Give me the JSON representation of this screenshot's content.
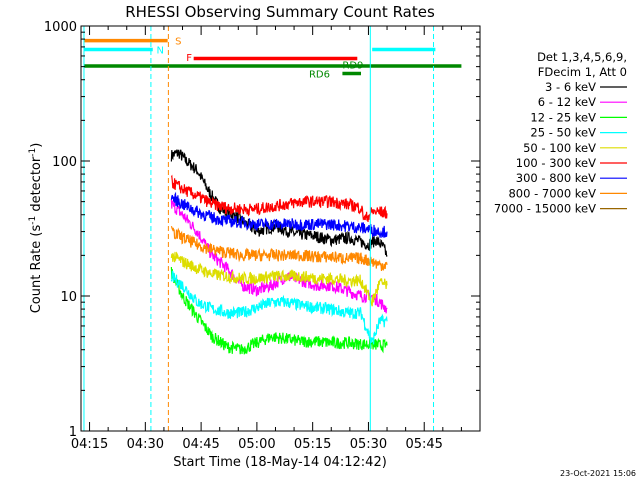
{
  "chart_data": {
    "type": "line",
    "title": "RHESSI Observing Summary Count Rates",
    "xlabel": "Start Time (18-May-14 04:12:42)",
    "ylabel": "Count Rate (s",
    "ylabel_sup": "-1",
    "ylabel_mid": " detector",
    "ylabel_end": ")",
    "x_ticks": [
      "04:15",
      "04:30",
      "04:45",
      "05:00",
      "05:15",
      "05:30",
      "05:45"
    ],
    "x_tick_minutes": [
      255,
      270,
      285,
      300,
      315,
      330,
      345
    ],
    "xlim": [
      252.7,
      360
    ],
    "ylim": [
      1,
      1000
    ],
    "y_scale": "log",
    "y_ticks": [
      "1",
      "10",
      "100",
      "1000"
    ],
    "y_tick_values": [
      1,
      10,
      100,
      1000
    ],
    "legend": {
      "header_line1": "Det 1,3,4,5,6,9,",
      "header_line2": "FDecim 1, Att 0",
      "position": "right"
    },
    "series": [
      {
        "name": "3 - 6 keV",
        "color": "#000000",
        "x": [
          277,
          279,
          281,
          284,
          287,
          290,
          295,
          300,
          305,
          310,
          315,
          320,
          325,
          330,
          332,
          334,
          335
        ],
        "y": [
          110,
          115,
          100,
          85,
          60,
          45,
          38,
          30,
          33,
          29,
          28,
          26,
          27,
          24,
          26,
          23,
          20
        ]
      },
      {
        "name": "6 - 12 keV",
        "color": "#ff00ff",
        "x": [
          277,
          280,
          284,
          288,
          292,
          296,
          300,
          304,
          308,
          312,
          316,
          320,
          324,
          328,
          331,
          333,
          335
        ],
        "y": [
          48,
          40,
          30,
          20,
          16,
          12,
          11,
          12,
          14,
          13,
          12,
          12,
          11,
          10,
          10,
          9,
          8
        ]
      },
      {
        "name": "12 - 25 keV",
        "color": "#00ff00",
        "x": [
          277,
          280,
          284,
          288,
          292,
          296,
          300,
          304,
          308,
          312,
          316,
          320,
          324,
          328,
          331,
          333,
          335
        ],
        "y": [
          15,
          10,
          7,
          5,
          4.2,
          4.0,
          4.5,
          5.0,
          4.8,
          4.6,
          4.6,
          4.5,
          4.5,
          4.4,
          4.4,
          4.3,
          4.3
        ]
      },
      {
        "name": "25 - 50 keV",
        "color": "#00ffff",
        "x": [
          277,
          280,
          284,
          288,
          292,
          296,
          300,
          304,
          308,
          312,
          316,
          320,
          324,
          328,
          331,
          333,
          335
        ],
        "y": [
          14,
          12,
          9,
          8,
          7.5,
          7.5,
          8.2,
          9,
          9,
          8.5,
          8.2,
          8,
          7.5,
          7.5,
          4.5,
          6.5,
          6.5
        ]
      },
      {
        "name": "50 - 100 keV",
        "color": "#dddd00",
        "x": [
          277,
          280,
          284,
          288,
          292,
          296,
          300,
          304,
          308,
          312,
          316,
          320,
          324,
          328,
          331,
          333,
          335
        ],
        "y": [
          20,
          18,
          16,
          14.5,
          14,
          13.5,
          13.5,
          14,
          14,
          14,
          13.5,
          13.5,
          13,
          13,
          9,
          12.5,
          12
        ]
      },
      {
        "name": "100 - 300 keV",
        "color": "#ff0000",
        "x": [
          277,
          280,
          284,
          288,
          292,
          296,
          300,
          304,
          308,
          312,
          316,
          320,
          324,
          328,
          329,
          331,
          333,
          335
        ],
        "y": [
          70,
          62,
          55,
          48,
          45,
          44,
          44,
          46,
          48,
          50,
          50,
          50,
          48,
          45,
          37,
          42,
          42,
          41
        ]
      },
      {
        "name": "300 - 800 keV",
        "color": "#0000ff",
        "x": [
          277,
          280,
          284,
          288,
          292,
          296,
          300,
          304,
          308,
          312,
          316,
          320,
          324,
          328,
          331,
          333,
          335
        ],
        "y": [
          54,
          48,
          42,
          38,
          36,
          35,
          34,
          34,
          34,
          34,
          34,
          34,
          33,
          32,
          31,
          30,
          30
        ]
      },
      {
        "name": "800 - 7000 keV",
        "color": "#ff8800",
        "x": [
          277,
          280,
          284,
          288,
          292,
          296,
          300,
          304,
          308,
          312,
          316,
          320,
          324,
          328,
          331,
          333,
          335
        ],
        "y": [
          30,
          27,
          24,
          22,
          21,
          20,
          20,
          20,
          20,
          20,
          19.5,
          19.5,
          19,
          19,
          18,
          17,
          17
        ]
      },
      {
        "name": "7000 - 15000 keV",
        "color": "#996600",
        "x": [],
        "y": []
      }
    ],
    "flags": [
      {
        "label": "S",
        "color": "#ff8800",
        "x": [
          253.5,
          276
        ],
        "y": 780,
        "label_x": 278,
        "label_y": 780
      },
      {
        "label": "N",
        "color": "#00ffff",
        "x": [
          253.5,
          272
        ],
        "y": 670,
        "label_x": 273,
        "label_y": 670
      },
      {
        "label": "N",
        "color": "#00ffff",
        "x": [
          331,
          348
        ],
        "y": 670,
        "label_x": 0,
        "label_y": 0
      },
      {
        "label": "F",
        "color": "#ff0000",
        "x": [
          283,
          327
        ],
        "y": 575,
        "label_x": 281,
        "label_y": 590
      },
      {
        "label": "RD9",
        "color": "#008800",
        "x": [
          253.5,
          355
        ],
        "y": 505,
        "label_x": 323,
        "label_y": 520
      },
      {
        "label": "RD6",
        "color": "#008800",
        "x": [
          323,
          328
        ],
        "y": 445,
        "label_x": 314,
        "label_y": 445
      }
    ],
    "vlines": [
      {
        "x": 253.5,
        "color": "#00ffff",
        "style": "solid"
      },
      {
        "x": 271.5,
        "color": "#00ffff",
        "style": "dashed"
      },
      {
        "x": 276.2,
        "color": "#ff8800",
        "style": "dashed"
      },
      {
        "x": 330.5,
        "color": "#00ffff",
        "style": "solid"
      },
      {
        "x": 347.5,
        "color": "#00ffff",
        "style": "dashed"
      }
    ],
    "timestamp": "23-Oct-2021 15:06"
  }
}
